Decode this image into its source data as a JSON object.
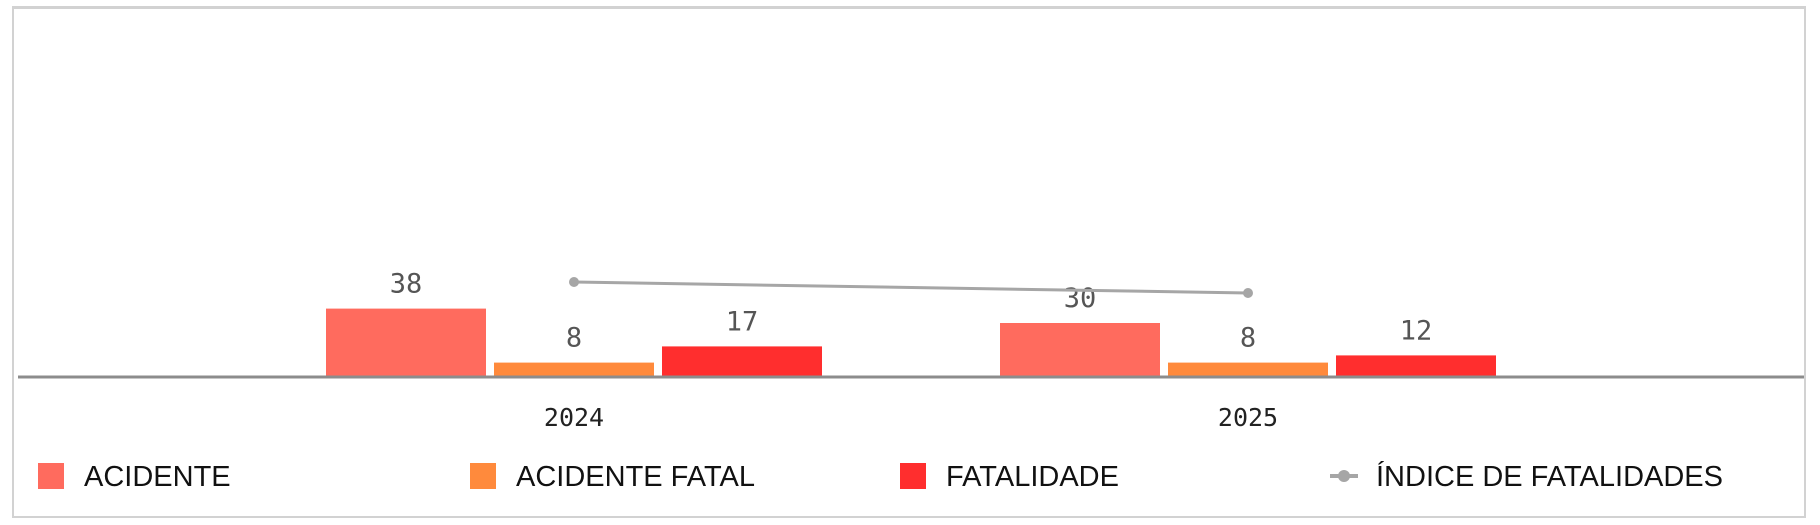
{
  "chart_data": {
    "type": "bar",
    "categories": [
      "2024",
      "2025"
    ],
    "series": [
      {
        "name": "ACIDENTE",
        "type": "bar",
        "color": "#FF6B5E",
        "values": [
          38,
          30
        ]
      },
      {
        "name": "ACIDENTE FATAL",
        "type": "bar",
        "color": "#FF8A3C",
        "values": [
          8,
          8
        ]
      },
      {
        "name": "FATALIDADE",
        "type": "bar",
        "color": "#FF2E2E",
        "values": [
          17,
          12
        ]
      },
      {
        "name": "ÍNDICE DE FATALIDADES",
        "type": "line",
        "color": "#A6A6A6",
        "values": [
          null,
          null
        ]
      }
    ],
    "legend_position": "bottom",
    "grid": false
  }
}
